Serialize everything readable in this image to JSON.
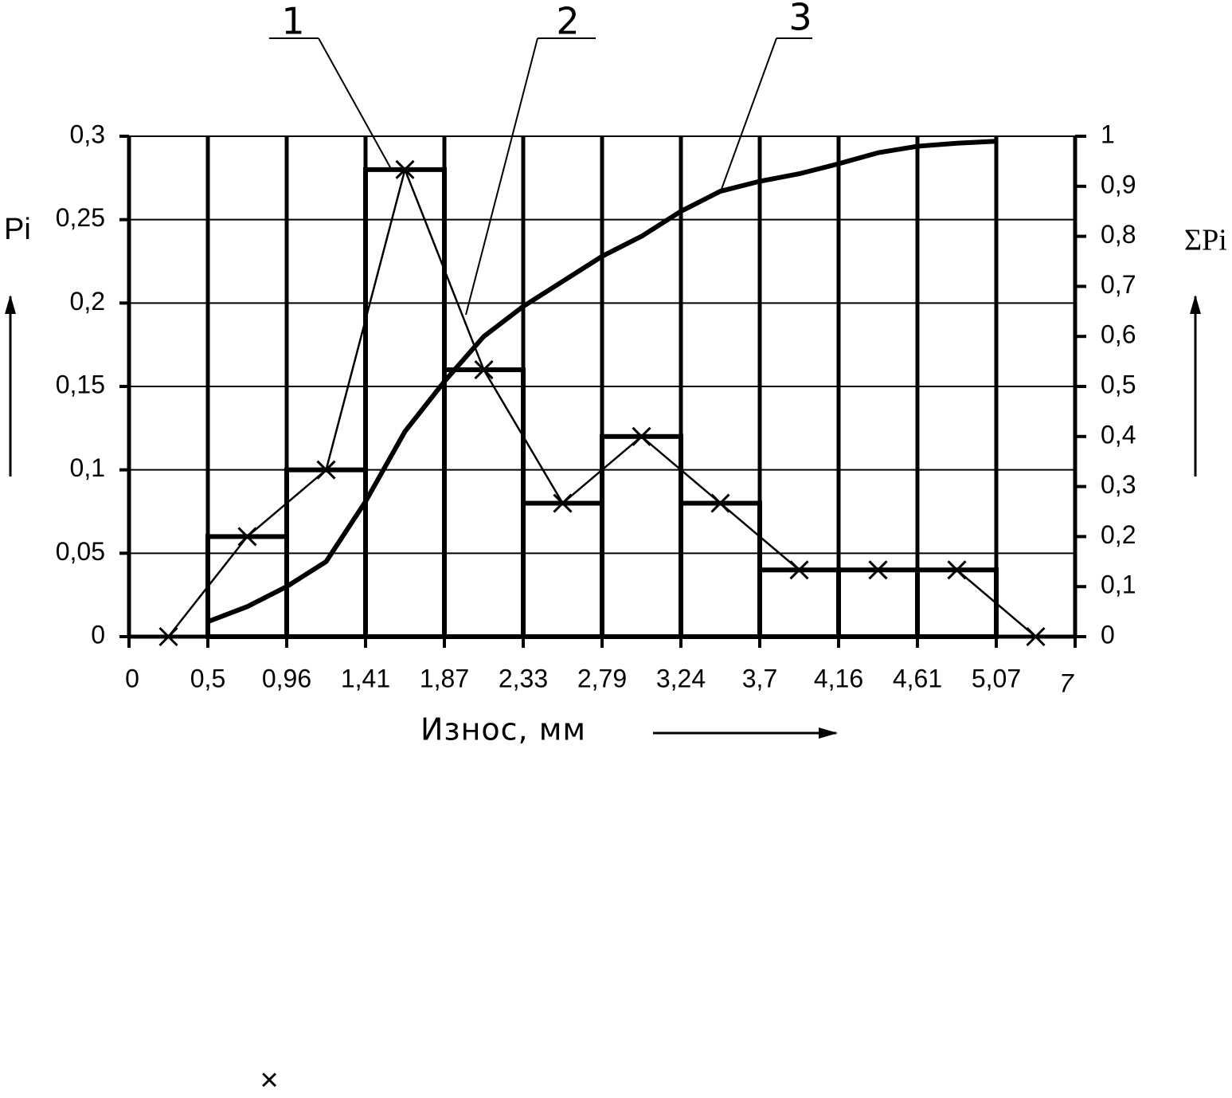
{
  "chart_data": {
    "type": "histogram",
    "y_label": "Pi",
    "y2_label": "ΣPi",
    "x_label": "Износ, мм",
    "annotation": "7",
    "xlim": [
      0,
      5.53
    ],
    "xticks": [
      0,
      {
        "value": 0.5,
        "label": "0,5"
      },
      {
        "value": 0.96,
        "label": "0,96"
      },
      {
        "value": 1.41,
        "label": "1,41"
      },
      {
        "value": 1.87,
        "label": "1,87"
      },
      {
        "value": 2.33,
        "label": "2,33"
      },
      {
        "value": 2.79,
        "label": "2,79"
      },
      {
        "value": 3.24,
        "label": "3,24"
      },
      {
        "value": 3.7,
        "label": "3,7"
      },
      {
        "value": 4.16,
        "label": "4,16"
      },
      {
        "value": 4.61,
        "label": "4,61"
      },
      {
        "value": 5.07,
        "label": "5,07"
      }
    ],
    "ylim": [
      0,
      0.3
    ],
    "yticks": [
      0,
      {
        "value": 0.05,
        "label": "0,05"
      },
      {
        "value": 0.1,
        "label": "0,1"
      },
      {
        "value": 0.15,
        "label": "0,15"
      },
      {
        "value": 0.2,
        "label": "0,2"
      },
      {
        "value": 0.25,
        "label": "0,25"
      },
      {
        "value": 0.3,
        "label": "0,3"
      }
    ],
    "y2lim": [
      0,
      1
    ],
    "y2ticks": [
      0,
      {
        "value": 0.1,
        "label": "0,1"
      },
      {
        "value": 0.2,
        "label": "0,2"
      },
      {
        "value": 0.3,
        "label": "0,3"
      },
      {
        "value": 0.4,
        "label": "0,4"
      },
      {
        "value": 0.5,
        "label": "0,5"
      },
      {
        "value": 0.6,
        "label": "0,6"
      },
      {
        "value": 0.7,
        "label": "0,7"
      },
      {
        "value": 0.8,
        "label": "0,8"
      },
      {
        "value": 0.9,
        "label": "0,9"
      },
      1
    ],
    "grid": true,
    "series": [
      {
        "name": "1",
        "type": "histogram",
        "color": "#000000",
        "bins": [
          0.5,
          0.96,
          1.41,
          1.87,
          2.33,
          2.79,
          3.24,
          3.7,
          4.16,
          4.61,
          5.07
        ],
        "values": [
          0.06,
          0.1,
          0.28,
          0.16,
          0.08,
          0.12,
          0.08,
          0.04,
          0.04,
          0.04
        ]
      },
      {
        "name": "2",
        "type": "line",
        "color": "#000000",
        "x": [
          0.25,
          0.73,
          1.185,
          1.64,
          2.1,
          2.56,
          3.015,
          3.47,
          3.93,
          4.385,
          4.84,
          5.3
        ],
        "values": [
          0,
          0.06,
          0.1,
          0.28,
          0.16,
          0.08,
          0.12,
          0.08,
          0.04,
          0.04,
          0.04,
          0
        ]
      },
      {
        "name": "3",
        "type": "line",
        "axis": "y2",
        "color": "#000000",
        "x": [
          0.5,
          0.73,
          0.96,
          1.185,
          1.41,
          1.64,
          1.87,
          2.1,
          2.33,
          2.56,
          2.79,
          3.015,
          3.24,
          3.47,
          3.7,
          3.93,
          4.16,
          4.385,
          4.61,
          4.84,
          5.07
        ],
        "values": [
          0.03,
          0.06,
          0.1,
          0.15,
          0.27,
          0.41,
          0.51,
          0.6,
          0.66,
          0.71,
          0.76,
          0.8,
          0.85,
          0.89,
          0.91,
          0.925,
          0.945,
          0.967,
          0.98,
          0.986,
          0.99
        ]
      }
    ]
  }
}
